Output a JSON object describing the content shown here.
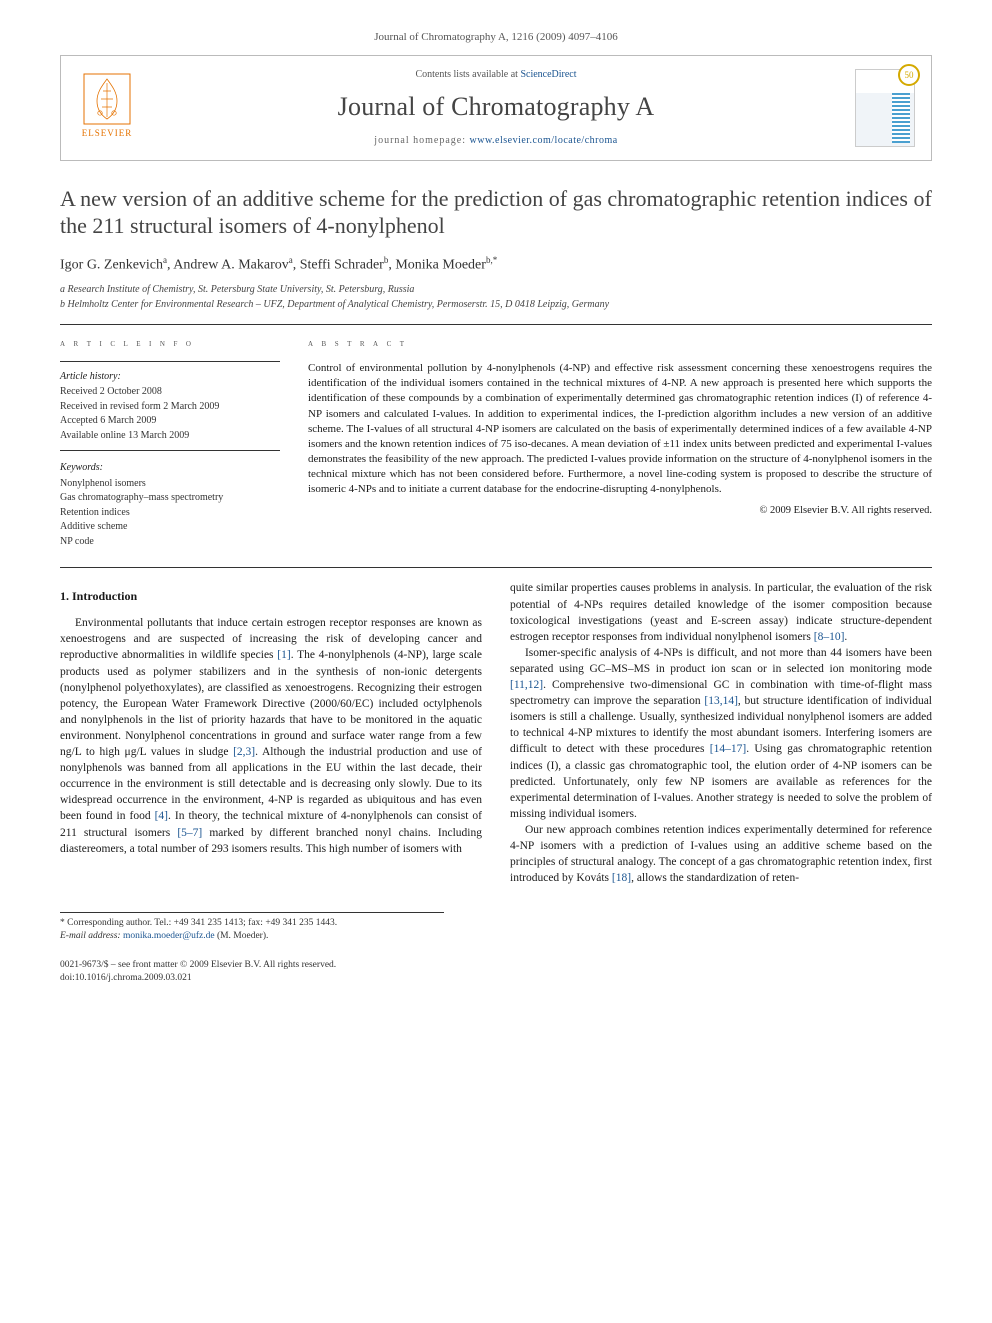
{
  "page_header": "Journal of Chromatography A, 1216 (2009) 4097–4106",
  "header": {
    "contents_line_prefix": "Contents lists available at ",
    "contents_link_text": "ScienceDirect",
    "journal_name": "Journal of Chromatography A",
    "homepage_prefix": "journal homepage: ",
    "homepage_url": "www.elsevier.com/locate/chroma",
    "elsevier_brand": "ELSEVIER",
    "badge": "50"
  },
  "article": {
    "title": "A new version of an additive scheme for the prediction of gas chromatographic retention indices of the 211 structural isomers of 4-nonylphenol",
    "authors_html": "Igor G. Zenkevich<sup>a</sup>, Andrew A. Makarov<sup>a</sup>, Steffi Schrader<sup>b</sup>, Monika Moeder<sup>b,*</sup>",
    "affiliations": [
      "a Research Institute of Chemistry, St. Petersburg State University, St. Petersburg, Russia",
      "b Helmholtz Center for Environmental Research – UFZ, Department of Analytical Chemistry, Permoserstr. 15, D 0418 Leipzig, Germany"
    ]
  },
  "info": {
    "heading": "a r t i c l e   i n f o",
    "history_label": "Article history:",
    "history": [
      "Received 2 October 2008",
      "Received in revised form 2 March 2009",
      "Accepted 6 March 2009",
      "Available online 13 March 2009"
    ],
    "keywords_label": "Keywords:",
    "keywords": [
      "Nonylphenol isomers",
      "Gas chromatography–mass spectrometry",
      "Retention indices",
      "Additive scheme",
      "NP code"
    ]
  },
  "abstract": {
    "heading": "a b s t r a c t",
    "text": "Control of environmental pollution by 4-nonylphenols (4-NP) and effective risk assessment concerning these xenoestrogens requires the identification of the individual isomers contained in the technical mixtures of 4-NP. A new approach is presented here which supports the identification of these compounds by a combination of experimentally determined gas chromatographic retention indices (I) of reference 4-NP isomers and calculated I-values. In addition to experimental indices, the I-prediction algorithm includes a new version of an additive scheme. The I-values of all structural 4-NP isomers are calculated on the basis of experimentally determined indices of a few available 4-NP isomers and the known retention indices of 75 iso-decanes. A mean deviation of ±11 index units between predicted and experimental I-values demonstrates the feasibility of the new approach. The predicted I-values provide information on the structure of 4-nonylphenol isomers in the technical mixture which has not been considered before. Furthermore, a novel line-coding system is proposed to describe the structure of isomeric 4-NPs and to initiate a current database for the endocrine-disrupting 4-nonylphenols.",
    "copyright": "© 2009 Elsevier B.V. All rights reserved."
  },
  "body": {
    "section1_heading": "1. Introduction",
    "p1": "Environmental pollutants that induce certain estrogen receptor responses are known as xenoestrogens and are suspected of increasing the risk of developing cancer and reproductive abnormalities in wildlife species [1]. The 4-nonylphenols (4-NP), large scale products used as polymer stabilizers and in the synthesis of non-ionic detergents (nonylphenol polyethoxylates), are classified as xenoestrogens. Recognizing their estrogen potency, the European Water Framework Directive (2000/60/EC) included octylphenols and nonylphenols in the list of priority hazards that have to be monitored in the aquatic environment. Nonylphenol concentrations in ground and surface water range from a few ng/L to high μg/L values in sludge [2,3]. Although the industrial production and use of nonylphenols was banned from all applications in the EU within the last decade, their occurrence in the environment is still detectable and is decreasing only slowly. Due to its widespread occurrence in the environment, 4-NP is regarded as ubiquitous and has even been found in food [4]. In theory, the technical mixture of 4-nonylphenols can consist of 211 structural isomers [5–7] marked by different branched nonyl chains. Including diastereomers, a total number of 293 isomers results. This high number of isomers with",
    "p2": "quite similar properties causes problems in analysis. In particular, the evaluation of the risk potential of 4-NPs requires detailed knowledge of the isomer composition because toxicological investigations (yeast and E-screen assay) indicate structure-dependent estrogen receptor responses from individual nonylphenol isomers [8–10].",
    "p3": "Isomer-specific analysis of 4-NPs is difficult, and not more than 44 isomers have been separated using GC–MS–MS in product ion scan or in selected ion monitoring mode [11,12]. Comprehensive two-dimensional GC in combination with time-of-flight mass spectrometry can improve the separation [13,14], but structure identification of individual isomers is still a challenge. Usually, synthesized individual nonylphenol isomers are added to technical 4-NP mixtures to identify the most abundant isomers. Interfering isomers are difficult to detect with these procedures [14–17]. Using gas chromatographic retention indices (I), a classic gas chromatographic tool, the elution order of 4-NP isomers can be predicted. Unfortunately, only few NP isomers are available as references for the experimental determination of I-values. Another strategy is needed to solve the problem of missing individual isomers.",
    "p4": "Our new approach combines retention indices experimentally determined for reference 4-NP isomers with a prediction of I-values using an additive scheme based on the principles of structural analogy. The concept of a gas chromatographic retention index, first introduced by Kováts [18], allows the standardization of reten-"
  },
  "footer": {
    "corr_author": "* Corresponding author. Tel.: +49 341 235 1413; fax: +49 341 235 1443.",
    "email_label": "E-mail address: ",
    "email": "monika.moeder@ufz.de",
    "email_suffix": " (M. Moeder).",
    "front_matter": "0021-9673/$ – see front matter © 2009 Elsevier B.V. All rights reserved.",
    "doi": "doi:10.1016/j.chroma.2009.03.021"
  },
  "refs": {
    "r1": "[1]",
    "r23": "[2,3]",
    "r4": "[4]",
    "r57": "[5–7]",
    "r810": "[8–10]",
    "r1112": "[11,12]",
    "r1314": "[13,14]",
    "r1417": "[14–17]",
    "r18": "[18]"
  },
  "colors": {
    "link": "#1a5490",
    "elsevier_orange": "#e57200",
    "rule": "#333333",
    "muted": "#555555"
  }
}
